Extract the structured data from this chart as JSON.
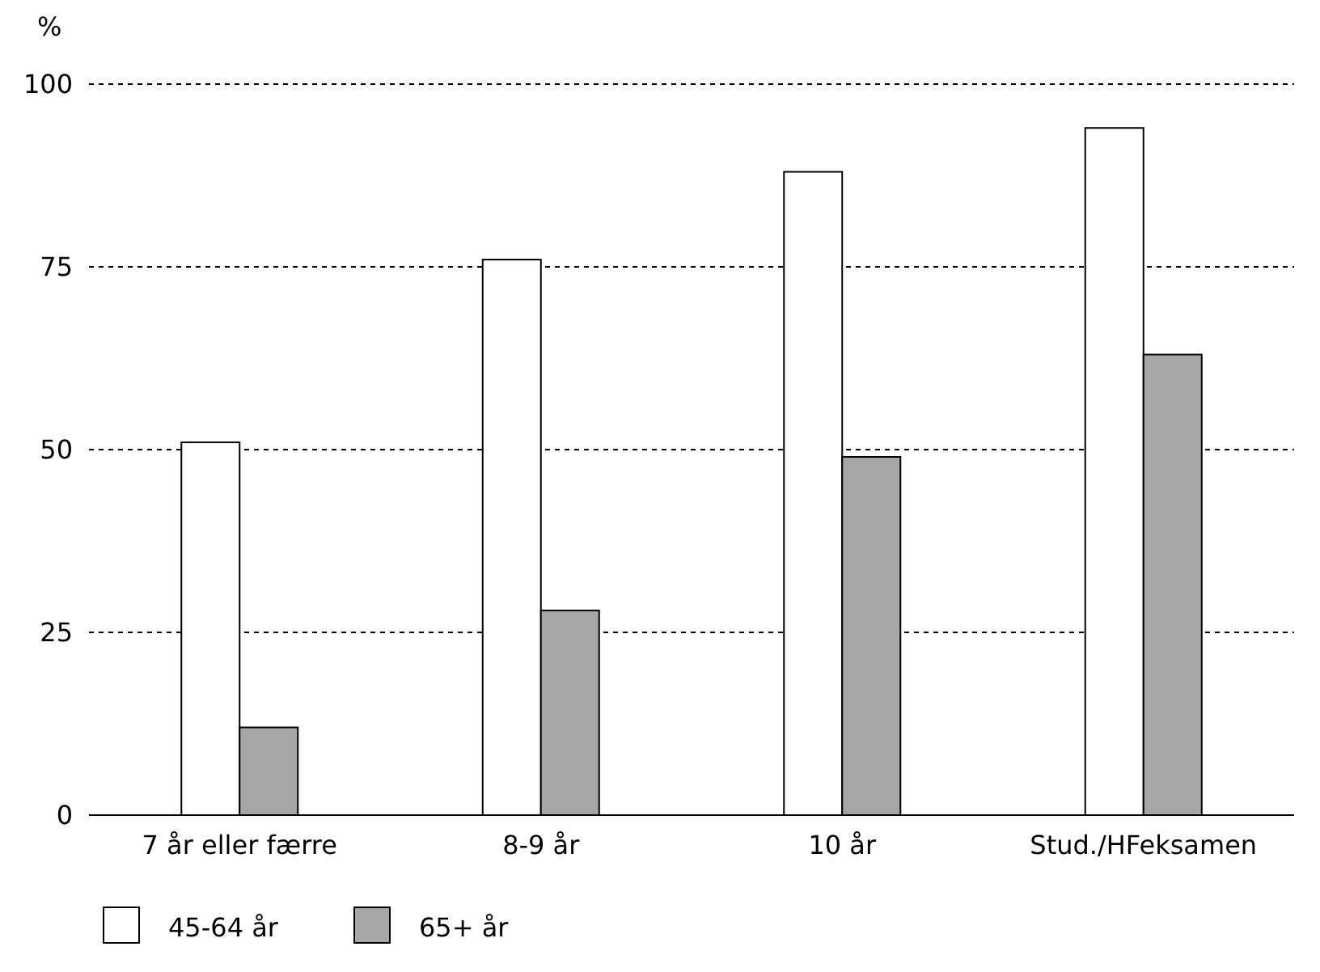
{
  "chart_data": {
    "type": "bar",
    "ylabel": "%",
    "categories": [
      "7 år eller færre",
      "8-9 år",
      "10 år",
      "Stud./HFeksamen"
    ],
    "series": [
      {
        "name": "45-64 år",
        "color": "#ffffff",
        "values": [
          51,
          76,
          88,
          94
        ]
      },
      {
        "name": "65+ år",
        "color": "#a6a6a6",
        "values": [
          12,
          28,
          49,
          63
        ]
      }
    ],
    "ylim": [
      0,
      100
    ],
    "yticks": [
      0,
      25,
      50,
      75,
      100
    ],
    "grid": "y",
    "legend": "bottom left"
  }
}
